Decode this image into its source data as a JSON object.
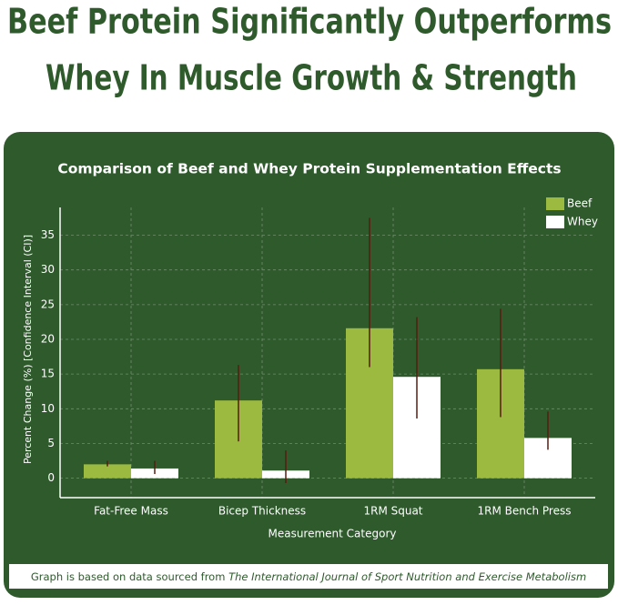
{
  "header": {
    "title_lines": [
      "Beef Protein Significantly Outperforms",
      "Whey In Muscle Growth & Strength"
    ]
  },
  "chart_data": {
    "type": "bar",
    "title": "Comparison of Beef and Whey Protein Supplementation Effects",
    "x_label": "Measurement Category",
    "y_label": "Percent Change (%) [Confidence Interval (CI)]",
    "categories": [
      "Fat-Free Mass",
      "Bicep Thickness",
      "1RM Squat",
      "1RM Bench Press"
    ],
    "series": [
      {
        "name": "Beef",
        "color": "#9cba40",
        "values": [
          2.0,
          11.2,
          21.6,
          15.7
        ],
        "ci_low": [
          1.7,
          5.3,
          16.0,
          8.8
        ],
        "ci_high": [
          2.5,
          16.3,
          37.5,
          24.4
        ]
      },
      {
        "name": "Whey",
        "color": "#ffffff",
        "values": [
          1.4,
          1.1,
          14.6,
          5.8
        ],
        "ci_low": [
          0.6,
          -0.7,
          8.6,
          4.1
        ],
        "ci_high": [
          2.5,
          4.0,
          23.2,
          9.6
        ]
      }
    ],
    "error_color": "#5a1a10",
    "ylim": [
      -2.8,
      39
    ],
    "yticks": [
      0,
      5,
      10,
      15,
      20,
      25,
      30,
      35
    ],
    "grid": true,
    "legend": "top-right"
  },
  "footnote": {
    "text": "Graph is based on data sourced from",
    "source": "The International Journal of Sport Nutrition and Exercise Metabolism"
  }
}
